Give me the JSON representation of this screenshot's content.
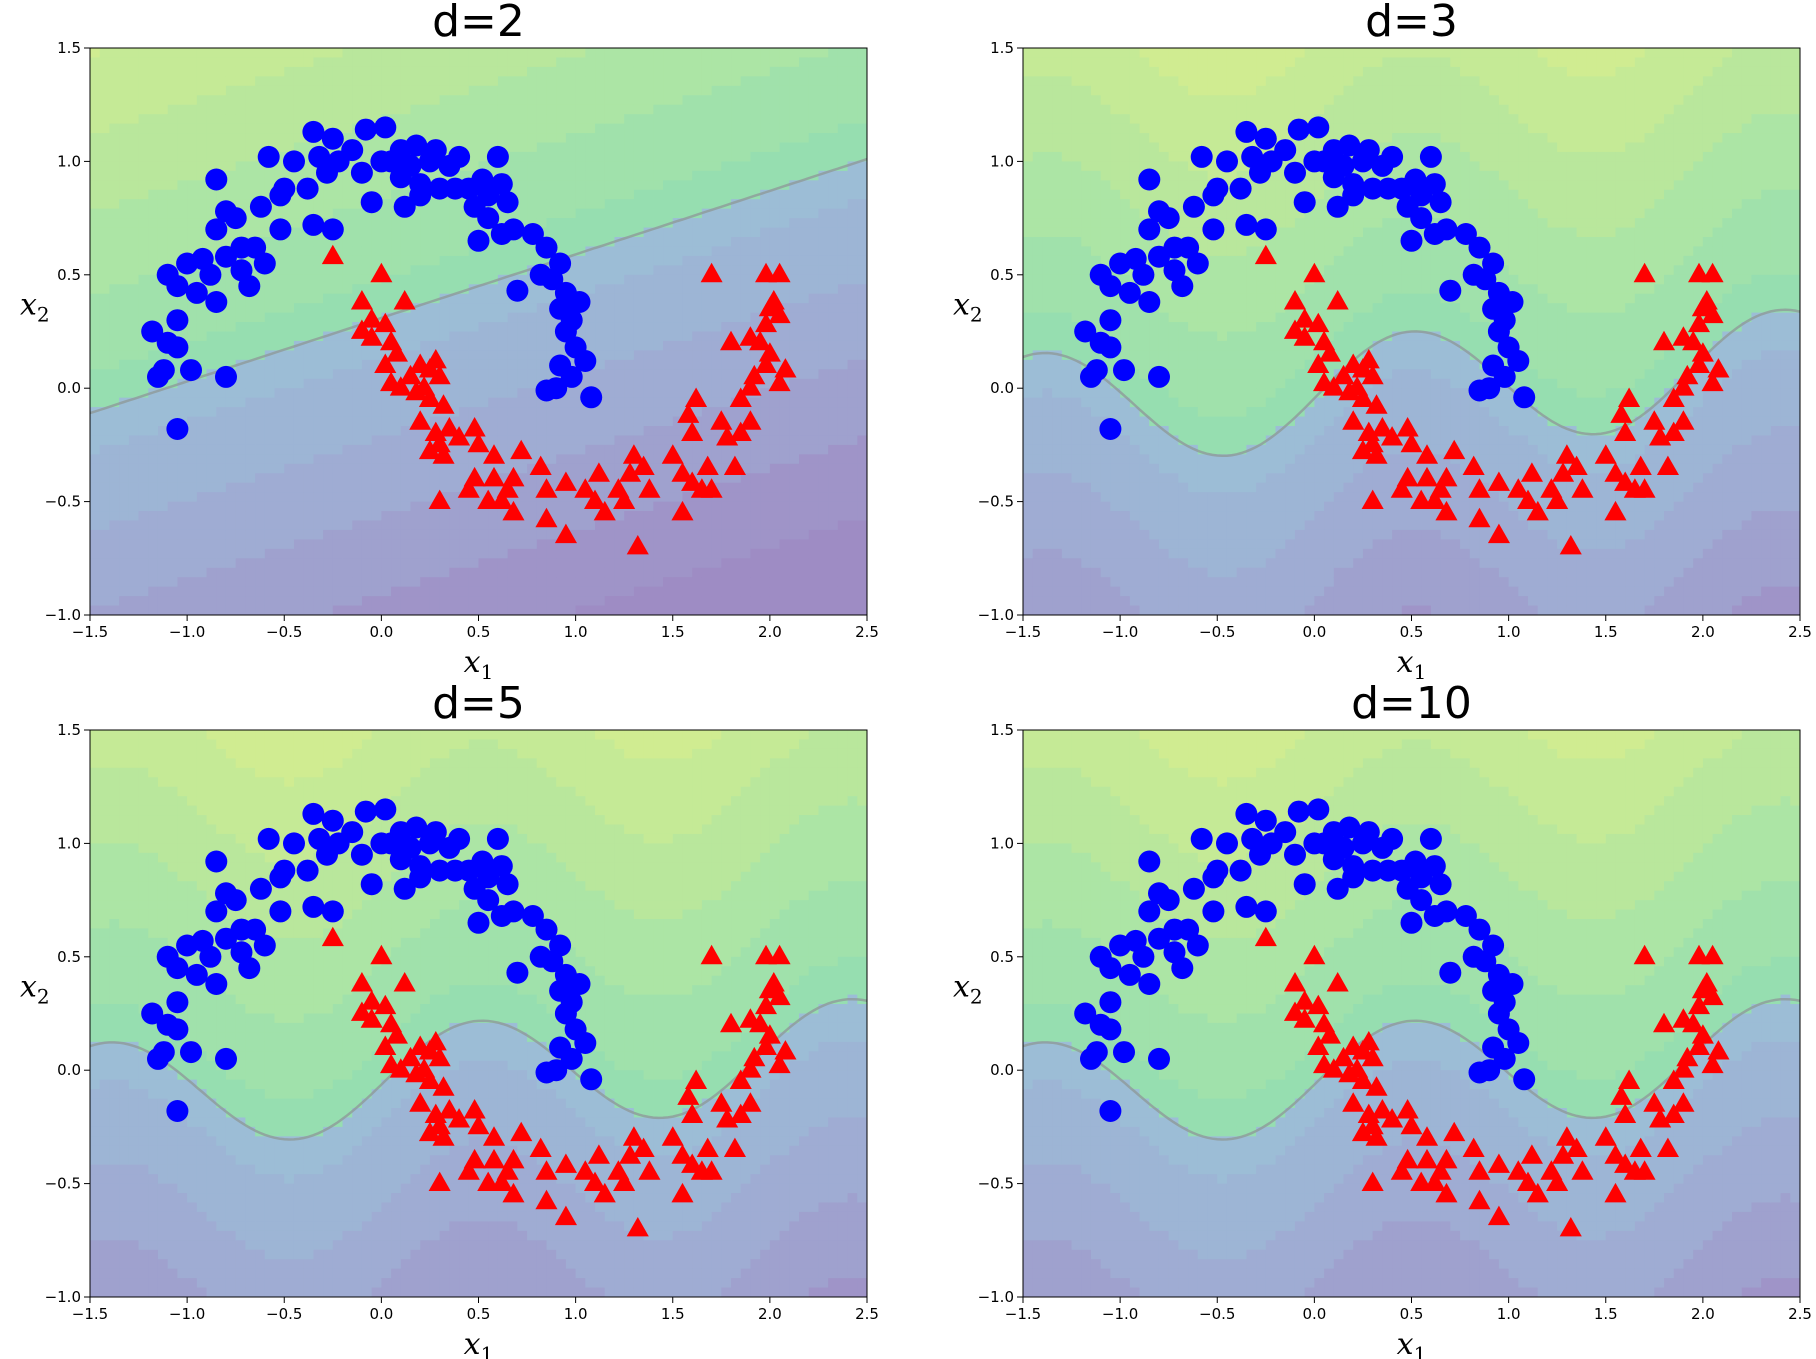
{
  "chart_data": [
    {
      "type": "scatter",
      "title": "d=2",
      "degree": 2,
      "xlabel": "x",
      "xlabel_sub": "1",
      "ylabel": "x",
      "ylabel_sub": "2",
      "xlim": [
        -1.5,
        2.5
      ],
      "ylim": [
        -1.0,
        1.5
      ],
      "xticks": [
        "−1.5",
        "−1.0",
        "−0.5",
        "0.0",
        "0.5",
        "1.0",
        "1.5",
        "2.0",
        "2.5"
      ],
      "yticks": [
        "−1.0",
        "−0.5",
        "0.0",
        "0.5",
        "1.0",
        "1.5"
      ]
    },
    {
      "type": "scatter",
      "title": "d=3",
      "degree": 3,
      "xlabel": "x",
      "xlabel_sub": "1",
      "ylabel": "x",
      "ylabel_sub": "2",
      "xlim": [
        -1.5,
        2.5
      ],
      "ylim": [
        -1.0,
        1.5
      ],
      "xticks": [
        "−1.5",
        "−1.0",
        "−0.5",
        "0.0",
        "0.5",
        "1.0",
        "1.5",
        "2.0",
        "2.5"
      ],
      "yticks": [
        "−1.0",
        "−0.5",
        "0.0",
        "0.5",
        "1.0",
        "1.5"
      ]
    },
    {
      "type": "scatter",
      "title": "d=5",
      "degree": 5,
      "xlabel": "x",
      "xlabel_sub": "1",
      "ylabel": "x",
      "ylabel_sub": "2",
      "xlim": [
        -1.5,
        2.5
      ],
      "ylim": [
        -1.0,
        1.5
      ],
      "xticks": [
        "−1.5",
        "−1.0",
        "−0.5",
        "0.0",
        "0.5",
        "1.0",
        "1.5",
        "2.0",
        "2.5"
      ],
      "yticks": [
        "−1.0",
        "−0.5",
        "0.0",
        "0.5",
        "1.0",
        "1.5"
      ]
    },
    {
      "type": "scatter",
      "title": "d=10",
      "degree": 10,
      "xlabel": "x",
      "xlabel_sub": "1",
      "ylabel": "x",
      "ylabel_sub": "2",
      "xlim": [
        -1.5,
        2.5
      ],
      "ylim": [
        -1.0,
        1.5
      ],
      "xticks": [
        "−1.5",
        "−1.0",
        "−0.5",
        "0.0",
        "0.5",
        "1.0",
        "1.5",
        "2.0",
        "2.5"
      ],
      "yticks": [
        "−1.0",
        "−0.5",
        "0.0",
        "0.5",
        "1.0",
        "1.5"
      ]
    }
  ],
  "series": [
    {
      "marker": "circle",
      "color": "#0000ff",
      "points": [
        [
          -0.58,
          1.02
        ],
        [
          -0.45,
          1.0
        ],
        [
          -0.35,
          1.13
        ],
        [
          -0.25,
          1.1
        ],
        [
          -0.15,
          1.05
        ],
        [
          -0.08,
          1.14
        ],
        [
          0.02,
          1.15
        ],
        [
          0.1,
          1.05
        ],
        [
          0.18,
          1.07
        ],
        [
          0.28,
          1.05
        ],
        [
          0.4,
          1.02
        ],
        [
          0.6,
          1.02
        ],
        [
          -0.32,
          1.02
        ],
        [
          -0.22,
          1.0
        ],
        [
          0.05,
          1.0
        ],
        [
          0.15,
          0.98
        ],
        [
          0.25,
          1.0
        ],
        [
          0.35,
          0.98
        ],
        [
          0.52,
          0.92
        ],
        [
          0.62,
          0.9
        ],
        [
          -0.75,
          0.75
        ],
        [
          -0.62,
          0.8
        ],
        [
          -0.52,
          0.85
        ],
        [
          -0.38,
          0.88
        ],
        [
          -0.28,
          0.95
        ],
        [
          -0.1,
          0.95
        ],
        [
          0.0,
          1.0
        ],
        [
          0.1,
          0.93
        ],
        [
          0.2,
          0.9
        ],
        [
          0.3,
          0.88
        ],
        [
          0.45,
          0.88
        ],
        [
          0.55,
          0.85
        ],
        [
          0.65,
          0.82
        ],
        [
          -0.85,
          0.92
        ],
        [
          -0.8,
          0.78
        ],
        [
          -0.85,
          0.7
        ],
        [
          -0.72,
          0.62
        ],
        [
          -0.65,
          0.62
        ],
        [
          -0.6,
          0.55
        ],
        [
          -0.52,
          0.7
        ],
        [
          -0.35,
          0.72
        ],
        [
          -0.25,
          0.7
        ],
        [
          -0.05,
          0.82
        ],
        [
          0.12,
          0.8
        ],
        [
          0.2,
          0.85
        ],
        [
          0.38,
          0.88
        ],
        [
          0.48,
          0.8
        ],
        [
          0.55,
          0.75
        ],
        [
          0.62,
          0.68
        ],
        [
          0.5,
          0.65
        ],
        [
          0.68,
          0.7
        ],
        [
          0.78,
          0.68
        ],
        [
          0.85,
          0.62
        ],
        [
          0.92,
          0.55
        ],
        [
          0.88,
          0.48
        ],
        [
          0.95,
          0.42
        ],
        [
          1.02,
          0.38
        ],
        [
          0.98,
          0.3
        ],
        [
          0.95,
          0.25
        ],
        [
          1.0,
          0.18
        ],
        [
          1.05,
          0.12
        ],
        [
          0.98,
          0.05
        ],
        [
          0.92,
          0.1
        ],
        [
          0.9,
          0.0
        ],
        [
          0.85,
          -0.01
        ],
        [
          1.08,
          -0.04
        ],
        [
          0.82,
          0.5
        ],
        [
          0.98,
          0.38
        ],
        [
          0.7,
          0.43
        ],
        [
          0.92,
          0.35
        ],
        [
          -0.92,
          0.57
        ],
        [
          -1.0,
          0.55
        ],
        [
          -1.1,
          0.5
        ],
        [
          -1.05,
          0.45
        ],
        [
          -0.95,
          0.42
        ],
        [
          -0.88,
          0.5
        ],
        [
          -0.8,
          0.58
        ],
        [
          -0.72,
          0.52
        ],
        [
          -0.68,
          0.45
        ],
        [
          -0.85,
          0.38
        ],
        [
          -1.05,
          0.3
        ],
        [
          -1.18,
          0.25
        ],
        [
          -1.1,
          0.2
        ],
        [
          -1.05,
          0.18
        ],
        [
          -1.12,
          0.08
        ],
        [
          -1.15,
          0.05
        ],
        [
          -0.98,
          0.08
        ],
        [
          -0.8,
          0.05
        ],
        [
          -1.05,
          -0.18
        ],
        [
          -0.5,
          0.88
        ]
      ]
    },
    {
      "marker": "triangle",
      "color": "#ff0000",
      "points": [
        [
          -0.25,
          0.58
        ],
        [
          0.0,
          0.5
        ],
        [
          0.12,
          0.38
        ],
        [
          -0.1,
          0.38
        ],
        [
          -0.05,
          0.3
        ],
        [
          -0.1,
          0.25
        ],
        [
          -0.05,
          0.22
        ],
        [
          0.02,
          0.28
        ],
        [
          0.05,
          0.2
        ],
        [
          0.08,
          0.15
        ],
        [
          0.02,
          0.1
        ],
        [
          0.15,
          0.05
        ],
        [
          0.2,
          0.1
        ],
        [
          0.25,
          0.08
        ],
        [
          0.28,
          0.12
        ],
        [
          0.3,
          0.05
        ],
        [
          0.22,
          0.0
        ],
        [
          0.18,
          -0.02
        ],
        [
          0.25,
          -0.05
        ],
        [
          0.1,
          0.0
        ],
        [
          0.05,
          0.02
        ],
        [
          0.32,
          -0.08
        ],
        [
          0.2,
          -0.15
        ],
        [
          0.28,
          -0.2
        ],
        [
          0.35,
          -0.18
        ],
        [
          0.4,
          -0.22
        ],
        [
          0.48,
          -0.18
        ],
        [
          0.3,
          -0.25
        ],
        [
          0.25,
          -0.28
        ],
        [
          0.32,
          -0.3
        ],
        [
          0.5,
          -0.25
        ],
        [
          0.58,
          -0.3
        ],
        [
          0.72,
          -0.28
        ],
        [
          0.82,
          -0.35
        ],
        [
          0.68,
          -0.4
        ],
        [
          0.58,
          -0.4
        ],
        [
          0.65,
          -0.45
        ],
        [
          0.48,
          -0.4
        ],
        [
          0.45,
          -0.45
        ],
        [
          0.55,
          -0.5
        ],
        [
          0.3,
          -0.5
        ],
        [
          0.62,
          -0.5
        ],
        [
          0.68,
          -0.55
        ],
        [
          0.85,
          -0.45
        ],
        [
          0.95,
          -0.42
        ],
        [
          0.85,
          -0.58
        ],
        [
          0.95,
          -0.65
        ],
        [
          1.05,
          -0.45
        ],
        [
          1.1,
          -0.5
        ],
        [
          1.15,
          -0.55
        ],
        [
          1.12,
          -0.38
        ],
        [
          1.22,
          -0.45
        ],
        [
          1.28,
          -0.38
        ],
        [
          1.3,
          -0.3
        ],
        [
          1.25,
          -0.5
        ],
        [
          1.35,
          -0.35
        ],
        [
          1.38,
          -0.45
        ],
        [
          1.32,
          -0.7
        ],
        [
          1.5,
          -0.3
        ],
        [
          1.55,
          -0.38
        ],
        [
          1.6,
          -0.42
        ],
        [
          1.65,
          -0.45
        ],
        [
          1.55,
          -0.55
        ],
        [
          1.68,
          -0.35
        ],
        [
          1.6,
          -0.2
        ],
        [
          1.58,
          -0.12
        ],
        [
          1.62,
          -0.05
        ],
        [
          1.75,
          -0.15
        ],
        [
          1.78,
          -0.22
        ],
        [
          1.85,
          -0.2
        ],
        [
          1.9,
          -0.15
        ],
        [
          1.85,
          -0.05
        ],
        [
          1.92,
          0.05
        ],
        [
          1.98,
          0.1
        ],
        [
          2.05,
          0.02
        ],
        [
          2.08,
          0.08
        ],
        [
          2.0,
          0.15
        ],
        [
          1.95,
          0.2
        ],
        [
          1.8,
          0.2
        ],
        [
          1.9,
          0.22
        ],
        [
          1.98,
          0.28
        ],
        [
          2.05,
          0.32
        ],
        [
          2.0,
          0.35
        ],
        [
          2.02,
          0.38
        ],
        [
          1.98,
          0.5
        ],
        [
          2.05,
          0.5
        ],
        [
          1.7,
          0.5
        ],
        [
          1.9,
          0.0
        ],
        [
          1.82,
          -0.35
        ],
        [
          1.7,
          -0.45
        ]
      ]
    }
  ]
}
